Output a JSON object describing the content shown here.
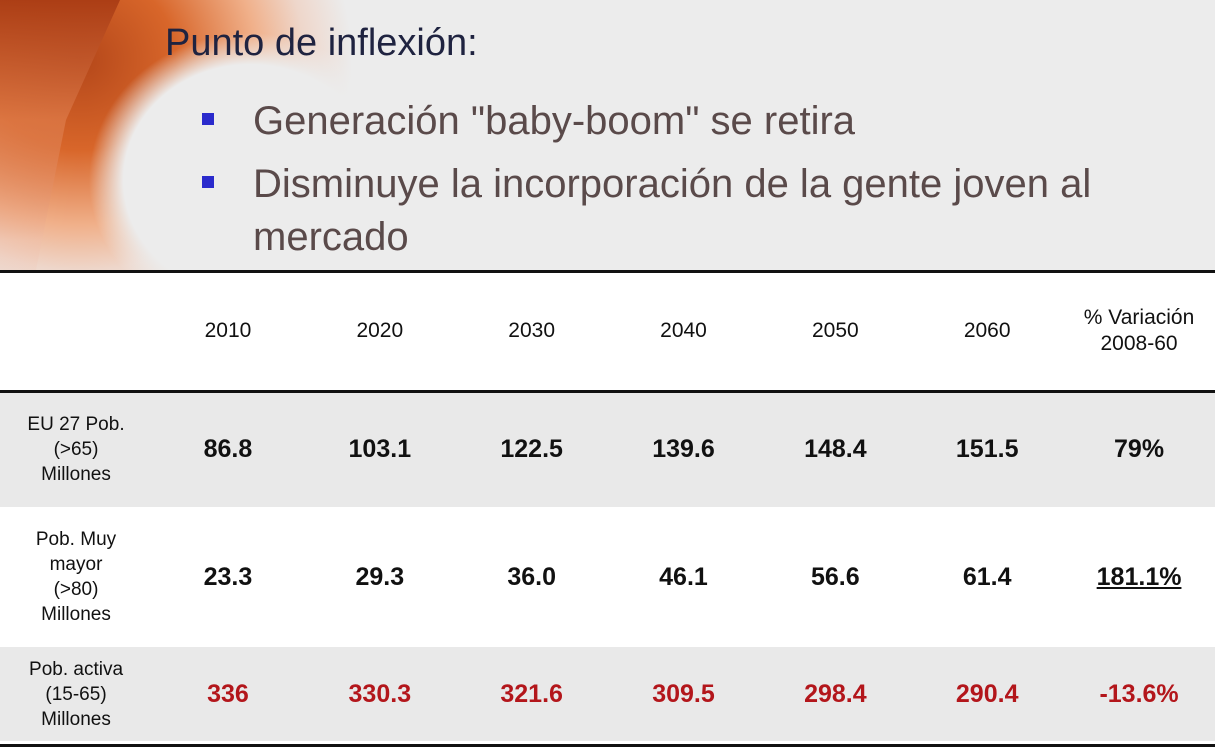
{
  "title": "Punto de inflexión:",
  "bullets": [
    "Generación \"baby-boom\"  se retira",
    "Disminuye la incorporación de la gente joven al mercado"
  ],
  "table": {
    "headers": [
      "",
      "2010",
      "2020",
      "2030",
      "2040",
      "2050",
      "2060",
      "% Variación 2008-60"
    ],
    "rows": [
      {
        "label": "EU 27 Pob. (>65) Millones",
        "values": [
          "86.8",
          "103.1",
          "122.5",
          "139.6",
          "148.4",
          "151.5",
          "79%"
        ]
      },
      {
        "label": "Pob. Muy mayor (>80) Millones",
        "values": [
          "23.3",
          "29.3",
          "36.0",
          "46.1",
          "56.6",
          "61.4",
          "181.1%"
        ]
      },
      {
        "label": "Pob. activa (15-65) Millones",
        "values": [
          "336",
          "330.3",
          "321.6",
          "309.5",
          "298.4",
          "290.4",
          "-13.6%"
        ]
      }
    ]
  },
  "colors": {
    "title": "#1f2340",
    "bullet_text": "#5a4a4a",
    "bullet_marker": "#2a2acc",
    "negative_row": "#b3161b"
  }
}
